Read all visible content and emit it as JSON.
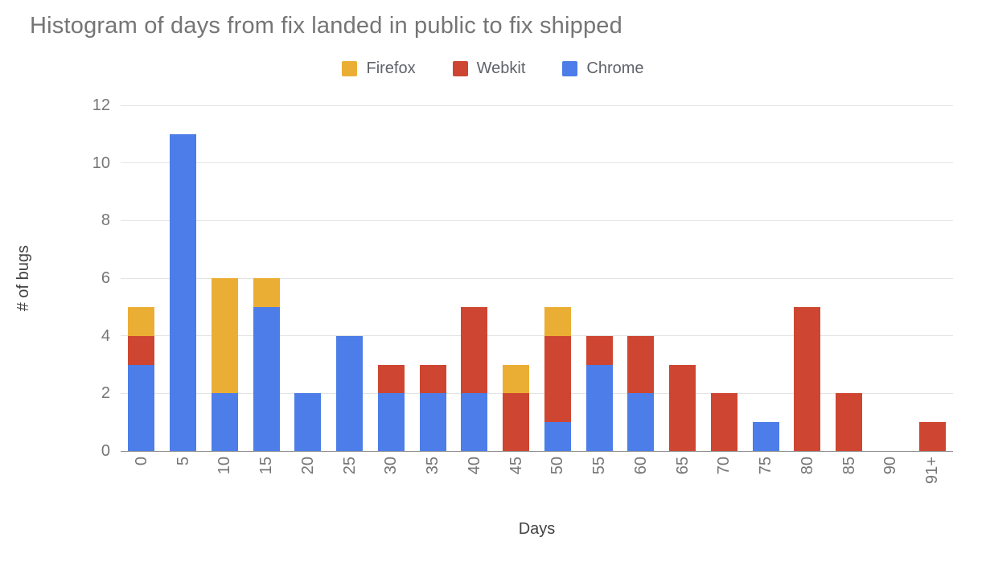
{
  "chart_data": {
    "type": "bar",
    "stacked": true,
    "title": "Histogram of days from fix landed in public to fix shipped",
    "xlabel": "Days",
    "ylabel": "# of bugs",
    "ylim": [
      0,
      12
    ],
    "yticks": [
      0,
      2,
      4,
      6,
      8,
      10,
      12
    ],
    "grid": "horizontal",
    "legend_position": "top",
    "legend_order": [
      "Firefox",
      "Webkit",
      "Chrome"
    ],
    "categories": [
      "0",
      "5",
      "10",
      "15",
      "20",
      "25",
      "30",
      "35",
      "40",
      "45",
      "50",
      "55",
      "60",
      "65",
      "70",
      "75",
      "80",
      "85",
      "90",
      "91+"
    ],
    "series": [
      {
        "name": "Chrome",
        "color": "#4C7DE8",
        "values": [
          3,
          11,
          2,
          5,
          2,
          4,
          2,
          2,
          2,
          0,
          1,
          3,
          2,
          0,
          0,
          1,
          0,
          0,
          0,
          0
        ]
      },
      {
        "name": "Webkit",
        "color": "#CE4631",
        "values": [
          1,
          0,
          0,
          0,
          0,
          0,
          1,
          1,
          3,
          2,
          3,
          1,
          2,
          3,
          2,
          0,
          5,
          2,
          0,
          1
        ]
      },
      {
        "name": "Firefox",
        "color": "#EBAE34",
        "values": [
          1,
          0,
          4,
          1,
          0,
          0,
          0,
          0,
          0,
          1,
          1,
          0,
          0,
          0,
          0,
          0,
          0,
          0,
          0,
          0
        ]
      }
    ],
    "stack_order_bottom_to_top": [
      "Chrome",
      "Webkit",
      "Firefox"
    ]
  }
}
